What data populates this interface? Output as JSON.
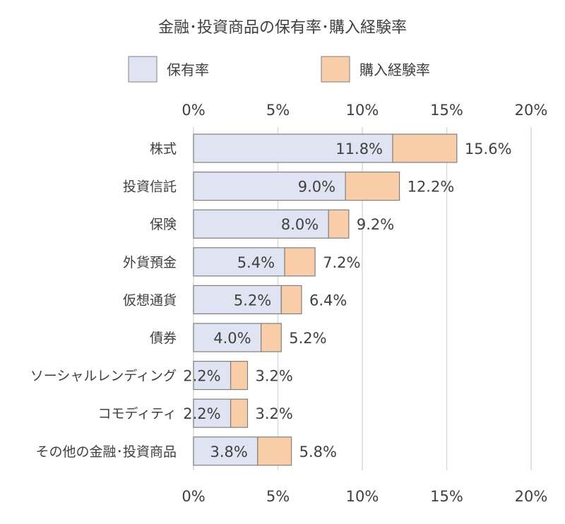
{
  "chart_data": {
    "type": "bar",
    "orientation": "horizontal",
    "title": "金融･投資商品の保有率･購入経験率",
    "categories": [
      "株式",
      "投資信託",
      "保険",
      "外貨預金",
      "仮想通貨",
      "債券",
      "ソーシャルレンディング",
      "コモディティ",
      "その他の金融･投資商品"
    ],
    "series": [
      {
        "name": "保有率",
        "color": "#e0e3f1",
        "values": [
          11.8,
          9.0,
          8.0,
          5.4,
          5.2,
          4.0,
          2.2,
          2.2,
          3.8
        ],
        "labels": [
          "11.8%",
          "9.0%",
          "8.0%",
          "5.4%",
          "5.2%",
          "4.0%",
          "2.2%",
          "2.2%",
          "3.8%"
        ]
      },
      {
        "name": "購入経験率",
        "color": "#f9cda8",
        "values": [
          15.6,
          12.2,
          9.2,
          7.2,
          6.4,
          5.2,
          3.2,
          3.2,
          5.8
        ],
        "labels": [
          "15.6%",
          "12.2%",
          "9.2%",
          "7.2%",
          "6.4%",
          "5.2%",
          "3.2%",
          "3.2%",
          "5.8%"
        ]
      }
    ],
    "xlim": [
      0,
      20
    ],
    "xticks": [
      0,
      5,
      10,
      15,
      20
    ],
    "xtick_labels": [
      "0%",
      "5%",
      "10%",
      "15%",
      "20%"
    ],
    "grid": true,
    "legend": "top",
    "bar_edge_color": "#808080"
  }
}
